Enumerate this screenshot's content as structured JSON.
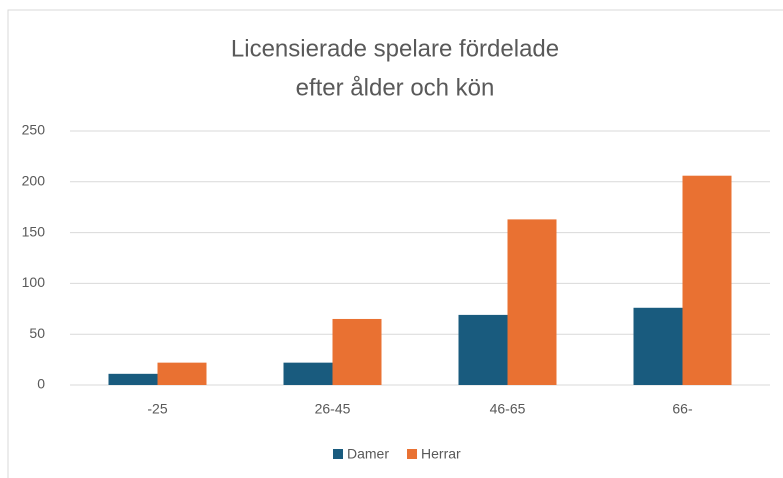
{
  "chart_data": {
    "type": "bar",
    "title": [
      "Licensierade spelare fördelade",
      "efter ålder och kön"
    ],
    "categories": [
      "-25",
      "26-45",
      "46-65",
      "66-"
    ],
    "series": [
      {
        "name": "Damer",
        "color": "#195b7e",
        "values": [
          11,
          22,
          69,
          76
        ]
      },
      {
        "name": "Herrar",
        "color": "#e97132",
        "values": [
          22,
          65,
          163,
          206
        ]
      }
    ],
    "ylim": [
      0,
      250
    ],
    "yticks": [
      0,
      50,
      100,
      150,
      200,
      250
    ],
    "grid": true,
    "legend": "bottom"
  }
}
